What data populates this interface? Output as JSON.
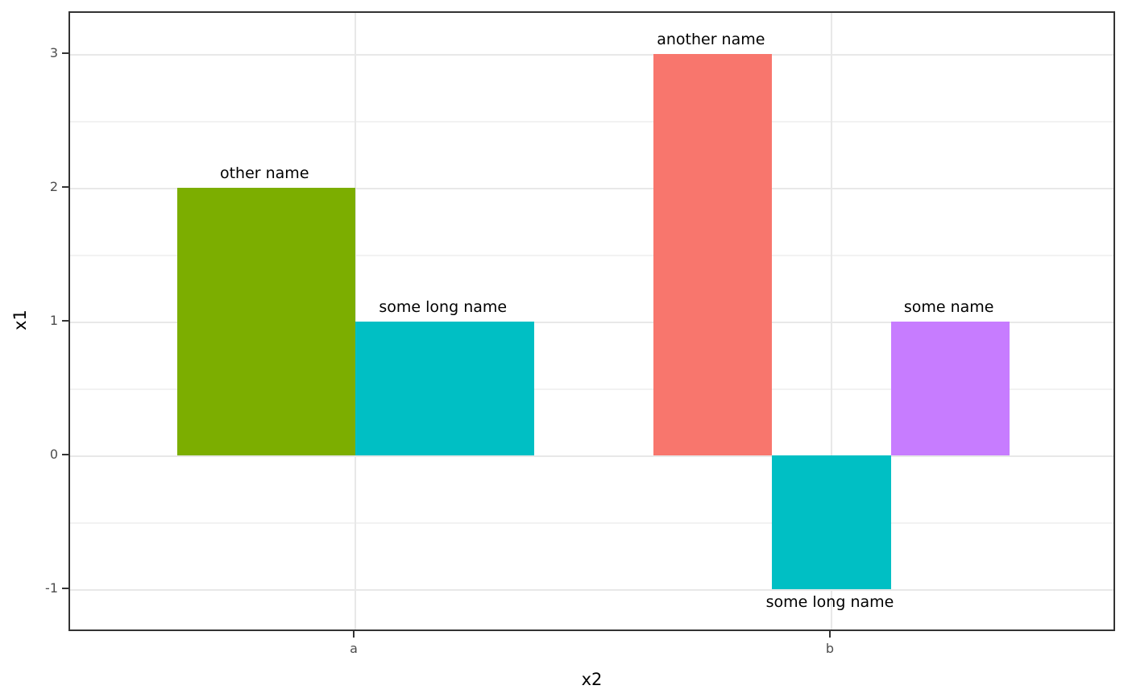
{
  "chart_data": {
    "type": "bar",
    "title": "",
    "xlabel": "x2",
    "ylabel": "x1",
    "x_categories": [
      "a",
      "b"
    ],
    "y_tick_labels": [
      "3",
      "2",
      "1",
      "0",
      "-1"
    ],
    "y_tick_values": [
      3,
      2,
      1,
      0,
      -1
    ],
    "y_minor_values": [
      2.5,
      1.5,
      0.5,
      -0.5
    ],
    "ylim": [
      -1.32,
      3.31
    ],
    "legend": "none",
    "grid": "major-and-minor",
    "groups": [
      {
        "category": "a",
        "bars": [
          {
            "name": "other name",
            "value": 2,
            "color": "#7CAE00"
          },
          {
            "name": "some long name",
            "value": 1,
            "color": "#00BFC4"
          }
        ]
      },
      {
        "category": "b",
        "bars": [
          {
            "name": "another name",
            "value": 3,
            "color": "#F8766D"
          },
          {
            "name": "some long name",
            "value": -1,
            "color": "#00BFC4"
          },
          {
            "name": "some name",
            "value": 1,
            "color": "#C77CFF"
          }
        ]
      }
    ]
  },
  "colors": {
    "background": "#ffffff",
    "panel_border": "#333333",
    "grid_major": "#e8e8e8",
    "grid_minor": "#f2f2f2",
    "tick_mark": "#333333",
    "axis_text": "#4d4d4d",
    "bar_label_text": "#000000",
    "axis_title_text": "#000000"
  }
}
